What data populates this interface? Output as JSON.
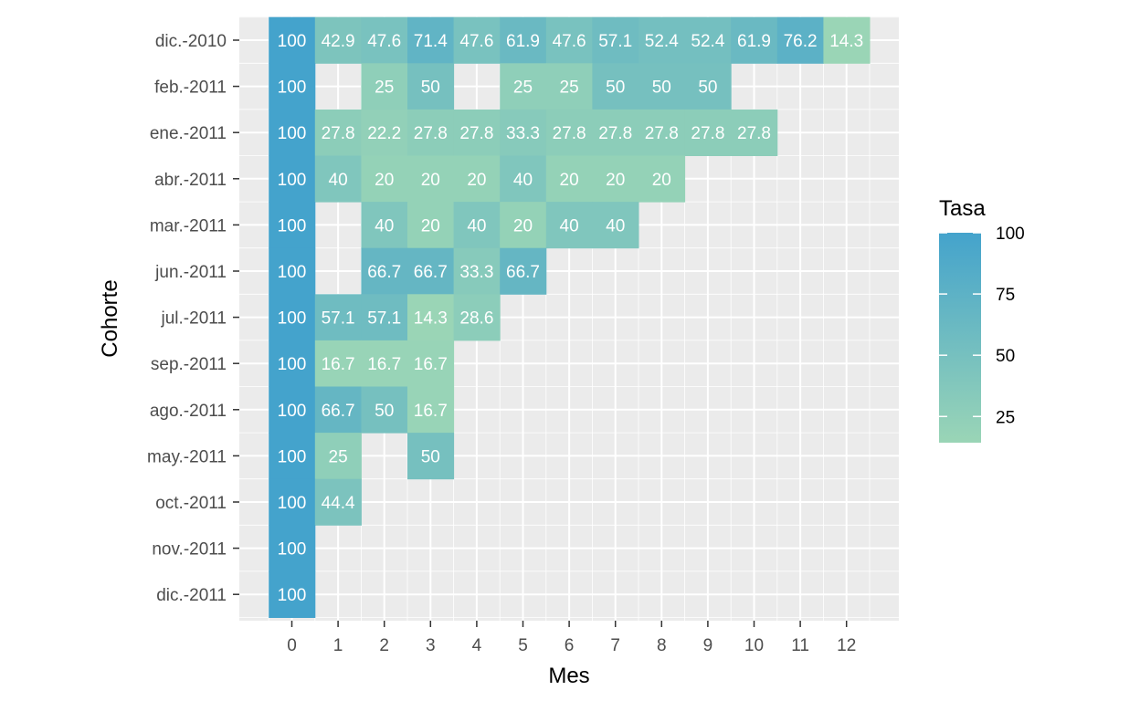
{
  "chart_data": {
    "type": "heatmap",
    "xlabel": "Mes",
    "ylabel": "Cohorte",
    "x_categories": [
      "0",
      "1",
      "2",
      "3",
      "4",
      "5",
      "6",
      "7",
      "8",
      "9",
      "10",
      "11",
      "12"
    ],
    "y_categories": [
      "dic.-2010",
      "feb.-2011",
      "ene.-2011",
      "abr.-2011",
      "mar.-2011",
      "jun.-2011",
      "jul.-2011",
      "sep.-2011",
      "ago.-2011",
      "may.-2011",
      "oct.-2011",
      "nov.-2011",
      "dic.-2011"
    ],
    "cells": [
      {
        "cohort": "dic.-2010",
        "mes": 0,
        "value": 100,
        "label": "100"
      },
      {
        "cohort": "dic.-2010",
        "mes": 1,
        "value": 42.9,
        "label": "42.9"
      },
      {
        "cohort": "dic.-2010",
        "mes": 2,
        "value": 47.6,
        "label": "47.6"
      },
      {
        "cohort": "dic.-2010",
        "mes": 3,
        "value": 71.4,
        "label": "71.4"
      },
      {
        "cohort": "dic.-2010",
        "mes": 4,
        "value": 47.6,
        "label": "47.6"
      },
      {
        "cohort": "dic.-2010",
        "mes": 5,
        "value": 61.9,
        "label": "61.9"
      },
      {
        "cohort": "dic.-2010",
        "mes": 6,
        "value": 47.6,
        "label": "47.6"
      },
      {
        "cohort": "dic.-2010",
        "mes": 7,
        "value": 57.1,
        "label": "57.1"
      },
      {
        "cohort": "dic.-2010",
        "mes": 8,
        "value": 52.4,
        "label": "52.4"
      },
      {
        "cohort": "dic.-2010",
        "mes": 9,
        "value": 52.4,
        "label": "52.4"
      },
      {
        "cohort": "dic.-2010",
        "mes": 10,
        "value": 61.9,
        "label": "61.9"
      },
      {
        "cohort": "dic.-2010",
        "mes": 11,
        "value": 76.2,
        "label": "76.2"
      },
      {
        "cohort": "dic.-2010",
        "mes": 12,
        "value": 14.3,
        "label": "14.3"
      },
      {
        "cohort": "feb.-2011",
        "mes": 0,
        "value": 100,
        "label": "100"
      },
      {
        "cohort": "feb.-2011",
        "mes": 2,
        "value": 25,
        "label": "25"
      },
      {
        "cohort": "feb.-2011",
        "mes": 3,
        "value": 50,
        "label": "50"
      },
      {
        "cohort": "feb.-2011",
        "mes": 5,
        "value": 25,
        "label": "25"
      },
      {
        "cohort": "feb.-2011",
        "mes": 6,
        "value": 25,
        "label": "25"
      },
      {
        "cohort": "feb.-2011",
        "mes": 7,
        "value": 50,
        "label": "50"
      },
      {
        "cohort": "feb.-2011",
        "mes": 8,
        "value": 50,
        "label": "50"
      },
      {
        "cohort": "feb.-2011",
        "mes": 9,
        "value": 50,
        "label": "50"
      },
      {
        "cohort": "ene.-2011",
        "mes": 0,
        "value": 100,
        "label": "100"
      },
      {
        "cohort": "ene.-2011",
        "mes": 1,
        "value": 27.8,
        "label": "27.8"
      },
      {
        "cohort": "ene.-2011",
        "mes": 2,
        "value": 22.2,
        "label": "22.2"
      },
      {
        "cohort": "ene.-2011",
        "mes": 3,
        "value": 27.8,
        "label": "27.8"
      },
      {
        "cohort": "ene.-2011",
        "mes": 4,
        "value": 27.8,
        "label": "27.8"
      },
      {
        "cohort": "ene.-2011",
        "mes": 5,
        "value": 33.3,
        "label": "33.3"
      },
      {
        "cohort": "ene.-2011",
        "mes": 6,
        "value": 27.8,
        "label": "27.8"
      },
      {
        "cohort": "ene.-2011",
        "mes": 7,
        "value": 27.8,
        "label": "27.8"
      },
      {
        "cohort": "ene.-2011",
        "mes": 8,
        "value": 27.8,
        "label": "27.8"
      },
      {
        "cohort": "ene.-2011",
        "mes": 9,
        "value": 27.8,
        "label": "27.8"
      },
      {
        "cohort": "ene.-2011",
        "mes": 10,
        "value": 27.8,
        "label": "27.8"
      },
      {
        "cohort": "abr.-2011",
        "mes": 0,
        "value": 100,
        "label": "100"
      },
      {
        "cohort": "abr.-2011",
        "mes": 1,
        "value": 40,
        "label": "40"
      },
      {
        "cohort": "abr.-2011",
        "mes": 2,
        "value": 20,
        "label": "20"
      },
      {
        "cohort": "abr.-2011",
        "mes": 3,
        "value": 20,
        "label": "20"
      },
      {
        "cohort": "abr.-2011",
        "mes": 4,
        "value": 20,
        "label": "20"
      },
      {
        "cohort": "abr.-2011",
        "mes": 5,
        "value": 40,
        "label": "40"
      },
      {
        "cohort": "abr.-2011",
        "mes": 6,
        "value": 20,
        "label": "20"
      },
      {
        "cohort": "abr.-2011",
        "mes": 7,
        "value": 20,
        "label": "20"
      },
      {
        "cohort": "abr.-2011",
        "mes": 8,
        "value": 20,
        "label": "20"
      },
      {
        "cohort": "mar.-2011",
        "mes": 0,
        "value": 100,
        "label": "100"
      },
      {
        "cohort": "mar.-2011",
        "mes": 2,
        "value": 40,
        "label": "40"
      },
      {
        "cohort": "mar.-2011",
        "mes": 3,
        "value": 20,
        "label": "20"
      },
      {
        "cohort": "mar.-2011",
        "mes": 4,
        "value": 40,
        "label": "40"
      },
      {
        "cohort": "mar.-2011",
        "mes": 5,
        "value": 20,
        "label": "20"
      },
      {
        "cohort": "mar.-2011",
        "mes": 6,
        "value": 40,
        "label": "40"
      },
      {
        "cohort": "mar.-2011",
        "mes": 7,
        "value": 40,
        "label": "40"
      },
      {
        "cohort": "jun.-2011",
        "mes": 0,
        "value": 100,
        "label": "100"
      },
      {
        "cohort": "jun.-2011",
        "mes": 2,
        "value": 66.7,
        "label": "66.7"
      },
      {
        "cohort": "jun.-2011",
        "mes": 3,
        "value": 66.7,
        "label": "66.7"
      },
      {
        "cohort": "jun.-2011",
        "mes": 4,
        "value": 33.3,
        "label": "33.3"
      },
      {
        "cohort": "jun.-2011",
        "mes": 5,
        "value": 66.7,
        "label": "66.7"
      },
      {
        "cohort": "jul.-2011",
        "mes": 0,
        "value": 100,
        "label": "100"
      },
      {
        "cohort": "jul.-2011",
        "mes": 1,
        "value": 57.1,
        "label": "57.1"
      },
      {
        "cohort": "jul.-2011",
        "mes": 2,
        "value": 57.1,
        "label": "57.1"
      },
      {
        "cohort": "jul.-2011",
        "mes": 3,
        "value": 14.3,
        "label": "14.3"
      },
      {
        "cohort": "jul.-2011",
        "mes": 4,
        "value": 28.6,
        "label": "28.6"
      },
      {
        "cohort": "sep.-2011",
        "mes": 0,
        "value": 100,
        "label": "100"
      },
      {
        "cohort": "sep.-2011",
        "mes": 1,
        "value": 16.7,
        "label": "16.7"
      },
      {
        "cohort": "sep.-2011",
        "mes": 2,
        "value": 16.7,
        "label": "16.7"
      },
      {
        "cohort": "sep.-2011",
        "mes": 3,
        "value": 16.7,
        "label": "16.7"
      },
      {
        "cohort": "ago.-2011",
        "mes": 0,
        "value": 100,
        "label": "100"
      },
      {
        "cohort": "ago.-2011",
        "mes": 1,
        "value": 66.7,
        "label": "66.7"
      },
      {
        "cohort": "ago.-2011",
        "mes": 2,
        "value": 50,
        "label": "50"
      },
      {
        "cohort": "ago.-2011",
        "mes": 3,
        "value": 16.7,
        "label": "16.7"
      },
      {
        "cohort": "may.-2011",
        "mes": 0,
        "value": 100,
        "label": "100"
      },
      {
        "cohort": "may.-2011",
        "mes": 1,
        "value": 25,
        "label": "25"
      },
      {
        "cohort": "may.-2011",
        "mes": 3,
        "value": 50,
        "label": "50"
      },
      {
        "cohort": "oct.-2011",
        "mes": 0,
        "value": 100,
        "label": "100"
      },
      {
        "cohort": "oct.-2011",
        "mes": 1,
        "value": 44.4,
        "label": "44.4"
      },
      {
        "cohort": "nov.-2011",
        "mes": 0,
        "value": 100,
        "label": "100"
      },
      {
        "cohort": "dic.-2011",
        "mes": 0,
        "value": 100,
        "label": "100"
      }
    ],
    "legend": {
      "title": "Tasa",
      "position": "right",
      "ticks": [
        100,
        75,
        50,
        25
      ],
      "tick_labels": [
        "100",
        "75",
        "50",
        "25"
      ],
      "range": [
        14.3,
        100
      ],
      "low_color": "#9ad5b6",
      "high_color": "#44a3cc"
    },
    "panel_background": "#ebebeb",
    "grid_color": "#ffffff"
  }
}
